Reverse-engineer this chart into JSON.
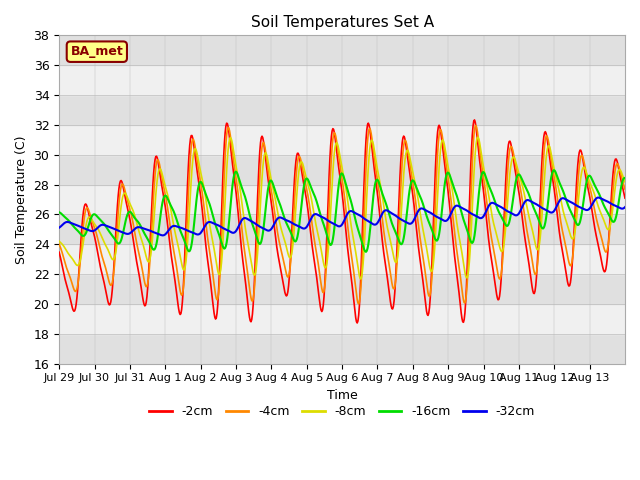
{
  "title": "Soil Temperatures Set A",
  "xlabel": "Time",
  "ylabel": "Soil Temperature (C)",
  "ylim": [
    16,
    38
  ],
  "yticks": [
    16,
    18,
    20,
    22,
    24,
    26,
    28,
    30,
    32,
    34,
    36,
    38
  ],
  "x_labels": [
    "Jul 29",
    "Jul 30",
    "Jul 31",
    "Aug 1",
    "Aug 2",
    "Aug 3",
    "Aug 4",
    "Aug 5",
    "Aug 6",
    "Aug 7",
    "Aug 8",
    "Aug 9",
    "Aug 10",
    "Aug 11",
    "Aug 12",
    "Aug 13"
  ],
  "series": [
    {
      "label": "-2cm",
      "color": "#ff0000",
      "lw": 1.2
    },
    {
      "label": "-4cm",
      "color": "#ff8800",
      "lw": 1.2
    },
    {
      "label": "-8cm",
      "color": "#dddd00",
      "lw": 1.2
    },
    {
      "label": "-16cm",
      "color": "#00dd00",
      "lw": 1.5
    },
    {
      "label": "-32cm",
      "color": "#0000ee",
      "lw": 1.5
    }
  ],
  "bg_color": "#ffffff",
  "plot_bg_light": "#f0f0f0",
  "plot_bg_dark": "#e0e0e0",
  "ba_met_label": "BA_met",
  "ba_met_bg": "#ffff88",
  "ba_met_border": "#880000",
  "days": 16
}
